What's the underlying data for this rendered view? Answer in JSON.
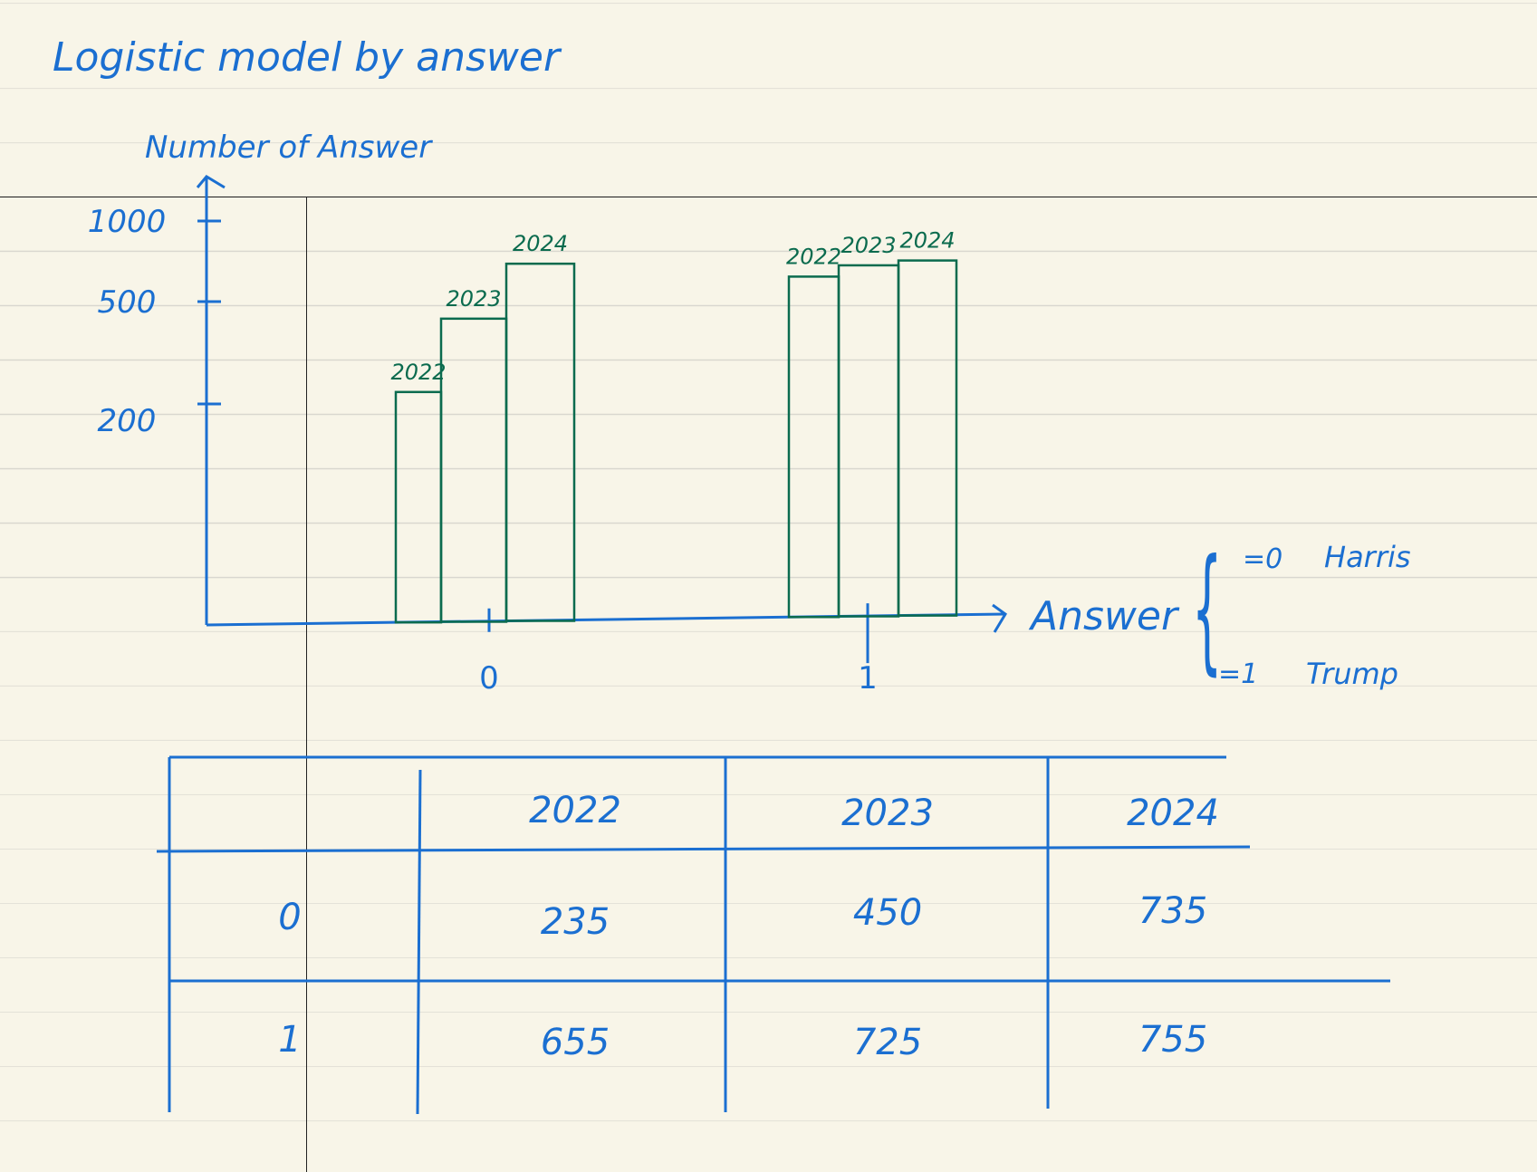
{
  "title": "Logistic model by answer",
  "legend": {
    "items": [
      {
        "code": "=0",
        "name": "Harris"
      },
      {
        "code": "=1",
        "name": "Trump"
      }
    ]
  },
  "colors": {
    "ink_blue": "#1b6fd1",
    "ink_green": "#0b6b4e",
    "paper": "#f8f5e8"
  },
  "chart_data": {
    "type": "bar",
    "title": "Logistic model by answer",
    "xlabel": "Answer",
    "ylabel": "Number of Answer",
    "categories": [
      "0",
      "1"
    ],
    "y_ticks": [
      200,
      500,
      1000
    ],
    "series": [
      {
        "name": "2022",
        "values": [
          235,
          655
        ]
      },
      {
        "name": "2023",
        "values": [
          450,
          725
        ]
      },
      {
        "name": "2024",
        "values": [
          735,
          755
        ]
      }
    ],
    "ylim": [
      0,
      1000
    ],
    "grid": false
  },
  "table": {
    "columns": [
      "",
      "2022",
      "2023",
      "2024"
    ],
    "rows": [
      [
        "0",
        "235",
        "450",
        "735"
      ],
      [
        "1",
        "655",
        "725",
        "755"
      ]
    ]
  }
}
